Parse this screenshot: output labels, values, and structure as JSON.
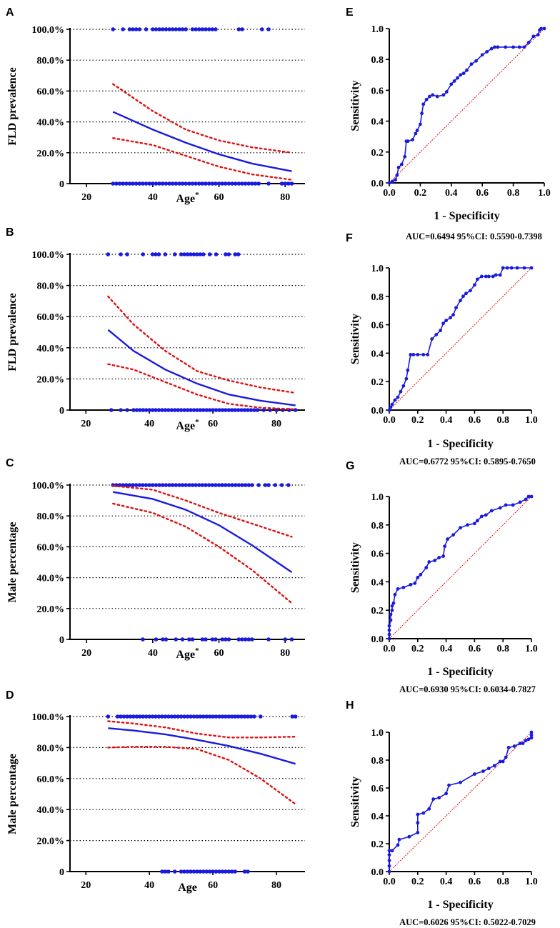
{
  "figure": {
    "curve_color": "#1a1adf",
    "ci_color": "#e01010",
    "dot_color": "#1a1adf",
    "grid_color": "#000000"
  },
  "chart_data": [
    {
      "panel": "A",
      "type": "line",
      "xlabel": "Age",
      "xlabel_sup": "*",
      "ylabel": "FLD prevalence",
      "xlim": [
        15,
        86
      ],
      "ylim": [
        0,
        100
      ],
      "xticks": [
        20,
        40,
        60,
        80
      ],
      "xtick_labels": [
        "20",
        "40",
        "60",
        "80"
      ],
      "yticks": [
        0,
        20,
        40,
        60,
        80,
        100
      ],
      "ytick_labels": [
        "0",
        "20.0%",
        "40.0%",
        "60.0%",
        "80.0%",
        "100.0%"
      ],
      "grid": "horizontal dotted",
      "series": [
        {
          "name": "fit",
          "x": [
            28,
            40,
            50,
            60,
            70,
            82
          ],
          "y": [
            46.5,
            35,
            26.5,
            19,
            13,
            8
          ]
        },
        {
          "name": "upper CI",
          "x": [
            28,
            40,
            50,
            60,
            70,
            82
          ],
          "y": [
            64.5,
            47,
            35,
            28,
            23.5,
            20
          ]
        },
        {
          "name": "lower CI",
          "x": [
            28,
            40,
            50,
            60,
            70,
            82
          ],
          "y": [
            29.5,
            25,
            18,
            11,
            6,
            2.5
          ]
        }
      ],
      "points_at_100": [
        28,
        31,
        33,
        34,
        35,
        36,
        38,
        40,
        41,
        42,
        43,
        44,
        45,
        46,
        47,
        48,
        49,
        50,
        52,
        53,
        54,
        55,
        56,
        57,
        58,
        59,
        66,
        67,
        73,
        75
      ],
      "points_at_0": [
        28,
        29,
        30,
        31,
        32,
        33,
        34,
        35,
        36,
        37,
        38,
        39,
        40,
        41,
        42,
        43,
        44,
        45,
        46,
        47,
        48,
        49,
        50,
        51,
        52,
        53,
        54,
        55,
        56,
        57,
        58,
        59,
        60,
        61,
        62,
        63,
        64,
        65,
        66,
        67,
        68,
        69,
        70,
        71,
        72,
        75,
        79,
        80,
        81,
        82
      ]
    },
    {
      "panel": "B",
      "type": "line",
      "xlabel": "Age",
      "xlabel_sup": "*",
      "ylabel": "FLD prevalence",
      "xlim": [
        15,
        89
      ],
      "ylim": [
        0,
        100
      ],
      "xticks": [
        20,
        40,
        60,
        80
      ],
      "xtick_labels": [
        "20",
        "40",
        "60",
        "80"
      ],
      "yticks": [
        0,
        20,
        40,
        60,
        80,
        100
      ],
      "ytick_labels": [
        "0",
        "20.0%",
        "40.0%",
        "60.0%",
        "80.0%",
        "100.0%"
      ],
      "grid": "horizontal dotted",
      "series": [
        {
          "name": "fit",
          "x": [
            27,
            35,
            45,
            55,
            65,
            75,
            86
          ],
          "y": [
            51.5,
            38,
            26,
            17,
            10,
            6,
            3
          ]
        },
        {
          "name": "upper CI",
          "x": [
            27,
            35,
            45,
            55,
            65,
            75,
            86
          ],
          "y": [
            73,
            55,
            38,
            25,
            19,
            14.5,
            11
          ]
        },
        {
          "name": "lower CI",
          "x": [
            27,
            35,
            45,
            55,
            65,
            75,
            86
          ],
          "y": [
            29.5,
            26,
            18,
            10,
            4,
            1.5,
            0.5
          ]
        }
      ],
      "points_at_100": [
        27,
        31,
        33,
        38,
        41,
        42,
        43,
        45,
        48,
        50,
        51,
        52,
        53,
        54,
        55,
        56,
        57,
        59,
        61,
        64,
        65,
        67,
        68
      ],
      "points_at_0": [
        28,
        31,
        33,
        35,
        36,
        37,
        38,
        39,
        40,
        41,
        42,
        43,
        44,
        45,
        46,
        47,
        48,
        49,
        50,
        51,
        52,
        53,
        54,
        55,
        56,
        57,
        58,
        59,
        60,
        61,
        62,
        63,
        64,
        65,
        66,
        67,
        68,
        69,
        70,
        71,
        72,
        73,
        74,
        76,
        78,
        80,
        82,
        84,
        86
      ]
    },
    {
      "panel": "C",
      "type": "line",
      "xlabel": "Age",
      "xlabel_sup": "*",
      "ylabel": "Male percentage",
      "xlim": [
        15,
        86
      ],
      "ylim": [
        0,
        100
      ],
      "xticks": [
        20,
        40,
        60,
        80
      ],
      "xtick_labels": [
        "20",
        "40",
        "60",
        "80"
      ],
      "yticks": [
        0,
        20,
        40,
        60,
        80,
        100
      ],
      "ytick_labels": [
        "0",
        "20.0%",
        "40.0%",
        "60.0%",
        "80.0%",
        "100.0%"
      ],
      "grid": "horizontal dotted",
      "series": [
        {
          "name": "fit",
          "x": [
            28,
            40,
            50,
            60,
            70,
            82
          ],
          "y": [
            95.5,
            91,
            84,
            74,
            61,
            43.5
          ]
        },
        {
          "name": "upper CI",
          "x": [
            28,
            40,
            50,
            60,
            70,
            82
          ],
          "y": [
            99.5,
            97,
            90,
            82,
            75,
            66.5
          ]
        },
        {
          "name": "lower CI",
          "x": [
            28,
            40,
            50,
            60,
            70,
            82
          ],
          "y": [
            88,
            82,
            73,
            60,
            45,
            23.5
          ]
        }
      ],
      "points_at_100": [
        28,
        29,
        30,
        31,
        32,
        33,
        34,
        35,
        36,
        37,
        38,
        39,
        40,
        41,
        42,
        43,
        44,
        45,
        46,
        47,
        48,
        49,
        50,
        51,
        52,
        53,
        54,
        55,
        56,
        57,
        58,
        59,
        60,
        61,
        62,
        63,
        64,
        65,
        66,
        67,
        68,
        69,
        70,
        72,
        74,
        75,
        77,
        79,
        81
      ],
      "points_at_0": [
        37,
        41,
        43,
        44,
        47,
        49,
        51,
        52,
        55,
        56,
        58,
        59,
        61,
        62,
        63,
        66,
        67,
        68,
        69,
        70,
        75,
        80,
        82
      ]
    },
    {
      "panel": "D",
      "type": "line",
      "xlabel": "Age",
      "xlabel_sup": "",
      "ylabel": "Male percentage",
      "xlim": [
        15,
        89
      ],
      "ylim": [
        0,
        100
      ],
      "xticks": [
        20,
        40,
        60,
        80
      ],
      "xtick_labels": [
        "20",
        "40",
        "60",
        "80"
      ],
      "yticks": [
        0,
        20,
        40,
        60,
        80,
        100
      ],
      "ytick_labels": [
        "0",
        "20.0%",
        "40.0%",
        "60.0%",
        "80.0%",
        "100.0%"
      ],
      "grid": "horizontal dotted",
      "series": [
        {
          "name": "fit",
          "x": [
            27,
            35,
            45,
            55,
            65,
            75,
            86
          ],
          "y": [
            92.5,
            91,
            88.5,
            85,
            81,
            76,
            69.5
          ]
        },
        {
          "name": "upper CI",
          "x": [
            27,
            35,
            45,
            55,
            65,
            75,
            86
          ],
          "y": [
            97,
            95.5,
            93,
            89,
            86.5,
            86.5,
            87
          ]
        },
        {
          "name": "lower CI",
          "x": [
            27,
            35,
            45,
            55,
            65,
            75,
            86
          ],
          "y": [
            80,
            80.5,
            80.5,
            79,
            72,
            60,
            43.5
          ]
        }
      ],
      "points_at_100": [
        27,
        30,
        31,
        32,
        33,
        34,
        35,
        36,
        37,
        38,
        39,
        40,
        41,
        42,
        43,
        44,
        45,
        46,
        47,
        48,
        49,
        50,
        51,
        52,
        53,
        54,
        55,
        56,
        57,
        58,
        59,
        60,
        61,
        62,
        63,
        64,
        65,
        66,
        67,
        68,
        69,
        70,
        71,
        72,
        73,
        75,
        85,
        86
      ],
      "points_at_0": [
        44,
        45,
        46,
        48,
        50,
        51,
        52,
        53,
        54,
        55,
        56,
        57,
        58,
        59,
        60,
        61,
        62,
        63,
        64,
        65,
        66,
        67,
        70,
        71
      ]
    },
    {
      "panel": "E",
      "type": "line",
      "xlabel": "1 - Specificity",
      "ylabel": "Sensitivity",
      "xlim": [
        0,
        1
      ],
      "ylim": [
        0,
        1
      ],
      "xticks": [
        0,
        0.2,
        0.4,
        0.6,
        0.8,
        1.0
      ],
      "xtick_labels": [
        "0.0",
        "0.2",
        "0.4",
        "0.6",
        "0.8",
        "1.0"
      ],
      "yticks": [
        0,
        0.2,
        0.4,
        0.6,
        0.8,
        1.0
      ],
      "ytick_labels": [
        "0.0",
        "0.2",
        "0.4",
        "0.6",
        "0.8",
        "1.0"
      ],
      "auc_label": "AUC=0.6494 95%CI: 0.5590-0.7398",
      "series": [
        {
          "name": "ROC",
          "x": [
            0,
            0.02,
            0.04,
            0.05,
            0.06,
            0.08,
            0.1,
            0.11,
            0.12,
            0.15,
            0.17,
            0.18,
            0.2,
            0.21,
            0.22,
            0.24,
            0.26,
            0.28,
            0.31,
            0.35,
            0.37,
            0.4,
            0.42,
            0.44,
            0.46,
            0.48,
            0.5,
            0.53,
            0.56,
            0.6,
            0.63,
            0.66,
            0.68,
            0.7,
            0.75,
            0.8,
            0.84,
            0.87,
            0.9,
            0.93,
            0.96,
            0.97,
            0.98,
            1.0
          ],
          "y": [
            0,
            0.01,
            0.02,
            0.05,
            0.1,
            0.12,
            0.17,
            0.27,
            0.27,
            0.28,
            0.32,
            0.34,
            0.38,
            0.45,
            0.51,
            0.54,
            0.56,
            0.57,
            0.56,
            0.57,
            0.59,
            0.64,
            0.66,
            0.68,
            0.7,
            0.71,
            0.73,
            0.77,
            0.79,
            0.83,
            0.85,
            0.87,
            0.88,
            0.88,
            0.88,
            0.88,
            0.88,
            0.88,
            0.91,
            0.95,
            0.96,
            0.99,
            1.0,
            1.0
          ]
        }
      ]
    },
    {
      "panel": "F",
      "type": "line",
      "xlabel": "1 - Specificity",
      "ylabel": "Sensitivity",
      "xlim": [
        0,
        1
      ],
      "ylim": [
        0,
        1
      ],
      "xticks": [
        0,
        0.2,
        0.4,
        0.6,
        0.8,
        1.0
      ],
      "xtick_labels": [
        "0.0",
        "0.2",
        "0.4",
        "0.6",
        "0.8",
        "1.0"
      ],
      "yticks": [
        0,
        0.2,
        0.4,
        0.6,
        0.8,
        1.0
      ],
      "ytick_labels": [
        "0.0",
        "0.2",
        "0.4",
        "0.6",
        "0.8",
        "1.0"
      ],
      "auc_label": "AUC=0.6772 95%CI: 0.5895-0.7650",
      "series": [
        {
          "name": "ROC",
          "x": [
            0,
            0.01,
            0.02,
            0.04,
            0.06,
            0.08,
            0.1,
            0.12,
            0.13,
            0.15,
            0.17,
            0.2,
            0.24,
            0.27,
            0.3,
            0.33,
            0.36,
            0.38,
            0.4,
            0.43,
            0.45,
            0.47,
            0.5,
            0.52,
            0.54,
            0.57,
            0.6,
            0.62,
            0.65,
            0.68,
            0.7,
            0.73,
            0.75,
            0.78,
            0.8,
            0.83,
            0.86,
            0.9,
            0.95,
            1.0
          ],
          "y": [
            0,
            0.02,
            0.04,
            0.07,
            0.09,
            0.13,
            0.17,
            0.22,
            0.28,
            0.39,
            0.39,
            0.39,
            0.39,
            0.39,
            0.5,
            0.53,
            0.56,
            0.61,
            0.63,
            0.65,
            0.67,
            0.72,
            0.77,
            0.8,
            0.82,
            0.84,
            0.88,
            0.92,
            0.94,
            0.94,
            0.94,
            0.94,
            0.95,
            0.95,
            1.0,
            1.0,
            1.0,
            1.0,
            1.0,
            1.0
          ]
        }
      ]
    },
    {
      "panel": "G",
      "type": "line",
      "xlabel": "1 - Specificity",
      "ylabel": "Sensitivity",
      "xlim": [
        0,
        1
      ],
      "ylim": [
        0,
        1
      ],
      "xticks": [
        0,
        0.2,
        0.4,
        0.6,
        0.8,
        1.0
      ],
      "xtick_labels": [
        "0.0",
        "0.2",
        "0.4",
        "0.6",
        "0.8",
        "1.0"
      ],
      "yticks": [
        0,
        0.2,
        0.4,
        0.6,
        0.8,
        1.0
      ],
      "ytick_labels": [
        "0.0",
        "0.2",
        "0.4",
        "0.6",
        "0.8",
        "1.0"
      ],
      "auc_label": "AUC=0.6930 95%CI: 0.6034-0.7827",
      "series": [
        {
          "name": "ROC",
          "x": [
            0,
            0,
            0,
            0,
            0.01,
            0.01,
            0.02,
            0.02,
            0.03,
            0.04,
            0.06,
            0.1,
            0.15,
            0.18,
            0.2,
            0.22,
            0.26,
            0.28,
            0.32,
            0.35,
            0.38,
            0.39,
            0.41,
            0.45,
            0.5,
            0.55,
            0.6,
            0.62,
            0.65,
            0.68,
            0.72,
            0.78,
            0.82,
            0.87,
            0.92,
            0.96,
            0.98,
            1.0
          ],
          "y": [
            0,
            0.03,
            0.06,
            0.09,
            0.13,
            0.17,
            0.2,
            0.23,
            0.25,
            0.31,
            0.35,
            0.36,
            0.38,
            0.39,
            0.43,
            0.45,
            0.5,
            0.54,
            0.55,
            0.57,
            0.58,
            0.65,
            0.7,
            0.73,
            0.78,
            0.8,
            0.81,
            0.83,
            0.86,
            0.87,
            0.9,
            0.92,
            0.94,
            0.94,
            0.96,
            0.98,
            1.0,
            1.0
          ]
        }
      ]
    },
    {
      "panel": "H",
      "type": "line",
      "xlabel": "1 - Specificity",
      "ylabel": "Sensitivity",
      "xlim": [
        0,
        1
      ],
      "ylim": [
        0,
        1
      ],
      "xticks": [
        0,
        0.2,
        0.4,
        0.6,
        0.8,
        1.0
      ],
      "xtick_labels": [
        "0.0",
        "0.2",
        "0.4",
        "0.6",
        "0.8",
        "1.0"
      ],
      "yticks": [
        0,
        0.2,
        0.4,
        0.6,
        0.8,
        1.0
      ],
      "ytick_labels": [
        "0.0",
        "0.2",
        "0.4",
        "0.6",
        "0.8",
        "1.0"
      ],
      "auc_label": "AUC=0.6026 95%CI: 0.5022-0.7029",
      "series": [
        {
          "name": "ROC",
          "x": [
            0,
            0,
            0,
            0,
            0,
            0.02,
            0.06,
            0.07,
            0.14,
            0.2,
            0.2,
            0.2,
            0.24,
            0.28,
            0.31,
            0.35,
            0.4,
            0.42,
            0.5,
            0.6,
            0.66,
            0.7,
            0.74,
            0.78,
            0.8,
            0.82,
            0.84,
            0.88,
            0.92,
            0.94,
            0.96,
            0.98,
            1.0,
            1.0,
            1.0
          ],
          "y": [
            0,
            0.04,
            0.08,
            0.12,
            0.15,
            0.15,
            0.19,
            0.23,
            0.25,
            0.28,
            0.35,
            0.41,
            0.42,
            0.45,
            0.52,
            0.53,
            0.56,
            0.62,
            0.64,
            0.7,
            0.72,
            0.74,
            0.76,
            0.79,
            0.79,
            0.82,
            0.89,
            0.9,
            0.92,
            0.92,
            0.94,
            0.95,
            0.96,
            0.98,
            1.0
          ]
        }
      ]
    }
  ]
}
